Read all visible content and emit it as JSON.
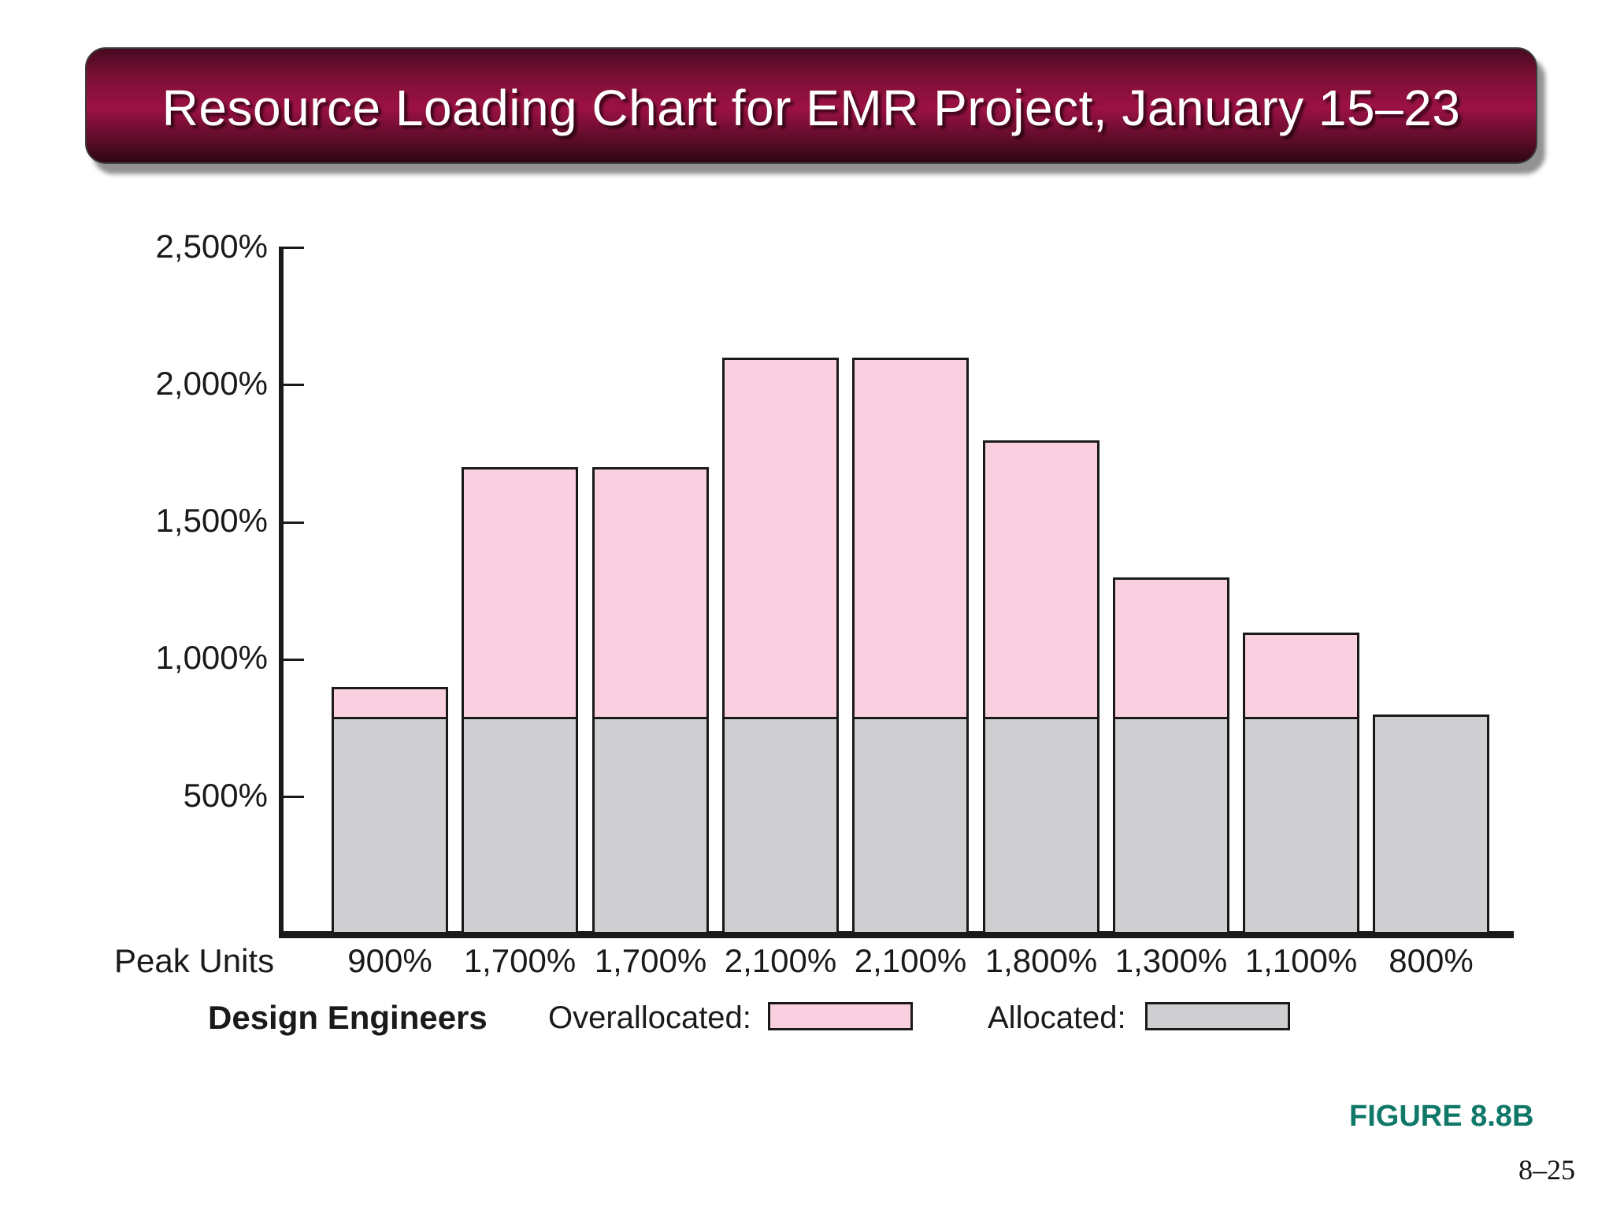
{
  "title": "Resource Loading Chart for EMR Project, January 15–23",
  "chart_data": {
    "type": "bar",
    "stacked": true,
    "title": "Resource Loading Chart for EMR Project, January 15–23",
    "xlabel": "Peak Units",
    "ylabel": "",
    "ylim": [
      0,
      2500
    ],
    "grid": false,
    "yticks": [
      {
        "value": 500,
        "label": "500%"
      },
      {
        "value": 1000,
        "label": "1,000%"
      },
      {
        "value": 1500,
        "label": "1,500%"
      },
      {
        "value": 2000,
        "label": "2,000%"
      },
      {
        "value": 2500,
        "label": "2,500%"
      }
    ],
    "categories": [
      "900%",
      "1,700%",
      "1,700%",
      "2,100%",
      "2,100%",
      "1,800%",
      "1,300%",
      "1,100%",
      "800%"
    ],
    "totals": [
      900,
      1700,
      1700,
      2100,
      2100,
      1800,
      1300,
      1100,
      800
    ],
    "series": [
      {
        "name": "Allocated",
        "values": [
          800,
          800,
          800,
          800,
          800,
          800,
          800,
          800,
          800
        ]
      },
      {
        "name": "Overallocated",
        "values": [
          100,
          900,
          900,
          1300,
          1300,
          1000,
          500,
          300,
          0
        ]
      }
    ],
    "legend_position": "bottom",
    "peak_units_label": "Peak Units"
  },
  "legend": {
    "resource_label": "Design Engineers",
    "overallocated_label": "Overallocated:",
    "allocated_label": "Allocated:"
  },
  "figure_caption": "FIGURE 8.8B",
  "page_number": "8–25",
  "colors": {
    "overallocated": "#fad0e0",
    "allocated": "#cfcfd1",
    "bar_border": "#1a1a1a",
    "banner_maroon": "#9d1144",
    "figure_caption_teal": "#0f7869"
  }
}
